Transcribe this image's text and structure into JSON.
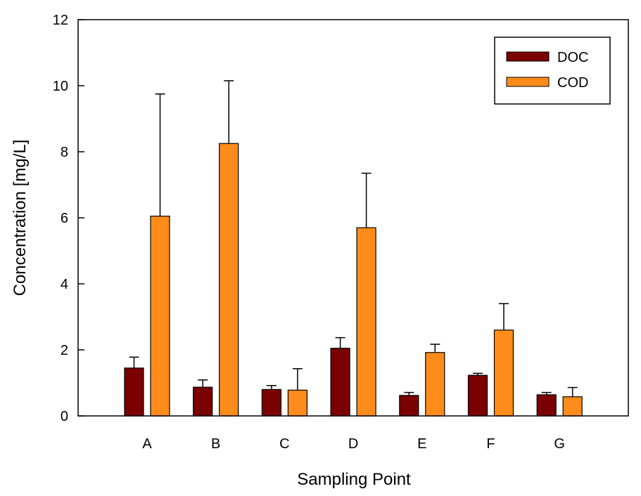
{
  "chart_data": {
    "type": "bar",
    "xlabel": "Sampling Point",
    "ylabel": "Concentration [mg/L]",
    "ylim": [
      0,
      12
    ],
    "yticks": [
      0,
      2,
      4,
      6,
      8,
      10,
      12
    ],
    "categories": [
      "A",
      "B",
      "C",
      "D",
      "E",
      "F",
      "G"
    ],
    "series": [
      {
        "name": "DOC",
        "color": "#7b0000",
        "values": [
          1.45,
          0.87,
          0.8,
          2.05,
          0.62,
          1.23,
          0.64
        ],
        "error_upper": [
          0.33,
          0.22,
          0.12,
          0.32,
          0.09,
          0.06,
          0.07
        ]
      },
      {
        "name": "COD",
        "color": "#ff8c1a",
        "values": [
          6.05,
          8.25,
          0.78,
          5.7,
          1.92,
          2.6,
          0.58
        ],
        "error_upper": [
          3.7,
          1.9,
          0.65,
          1.65,
          0.25,
          0.8,
          0.28
        ]
      }
    ],
    "legend_position": "top-right",
    "grid": false
  }
}
